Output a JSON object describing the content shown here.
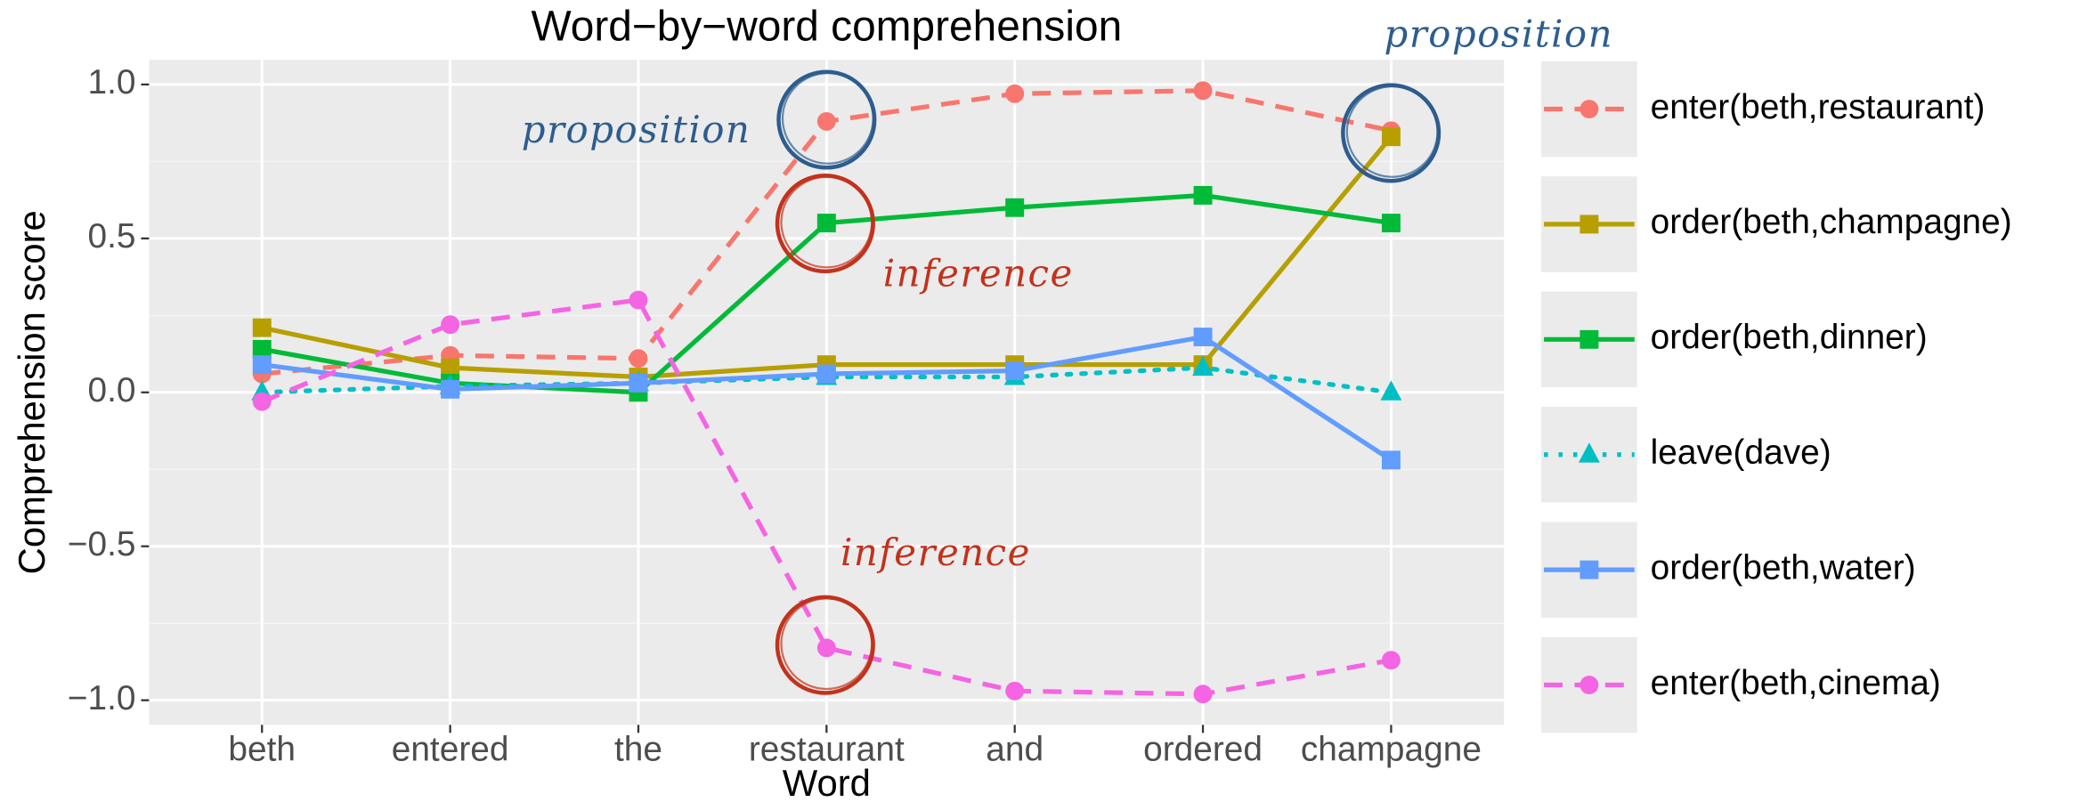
{
  "chart_data": {
    "type": "line",
    "title": "Word−by−word comprehension",
    "x_label": "Word",
    "y_label": "Comprehension score",
    "categories": [
      "beth",
      "entered",
      "the",
      "restaurant",
      "and",
      "ordered",
      "champagne"
    ],
    "ylim": [
      -1.08,
      1.08
    ],
    "yticks": [
      {
        "value": -1,
        "label": "−1.0"
      },
      {
        "value": -0.5,
        "label": "−0.5"
      },
      {
        "value": 0,
        "label": "0.0"
      },
      {
        "value": 0.5,
        "label": "0.5"
      },
      {
        "value": 1,
        "label": "1.0"
      }
    ],
    "minor_yticks": [
      -0.75,
      -0.25,
      0.25,
      0.75
    ],
    "grid": true,
    "legend": "right",
    "series": [
      {
        "name": "enter(beth,restaurant)",
        "color": "#F8766D",
        "linetype": "dashed",
        "marker": "circle",
        "values": [
          0.06,
          0.12,
          0.11,
          0.88,
          0.97,
          0.98,
          0.85
        ]
      },
      {
        "name": "order(beth,champagne)",
        "color": "#B79F00",
        "linetype": "solid",
        "marker": "square",
        "values": [
          0.21,
          0.08,
          0.05,
          0.09,
          0.09,
          0.09,
          0.83
        ]
      },
      {
        "name": "order(beth,dinner)",
        "color": "#00BA38",
        "linetype": "solid",
        "marker": "square",
        "values": [
          0.14,
          0.03,
          0.0,
          0.55,
          0.6,
          0.64,
          0.55
        ]
      },
      {
        "name": "leave(dave)",
        "color": "#00BFC4",
        "linetype": "dotted",
        "marker": "triangle",
        "values": [
          0.0,
          0.02,
          0.03,
          0.05,
          0.05,
          0.08,
          0.0
        ]
      },
      {
        "name": "order(beth,water)",
        "color": "#619CFF",
        "linetype": "solid",
        "marker": "square",
        "values": [
          0.09,
          0.01,
          0.03,
          0.06,
          0.07,
          0.18,
          -0.22
        ]
      },
      {
        "name": "enter(beth,cinema)",
        "color": "#F564E3",
        "linetype": "dashed",
        "marker": "circle",
        "values": [
          -0.03,
          0.22,
          0.3,
          -0.83,
          -0.97,
          -0.98,
          -0.87
        ]
      }
    ],
    "annotations": [
      "proposition",
      "proposition",
      "inference",
      "inference"
    ]
  }
}
